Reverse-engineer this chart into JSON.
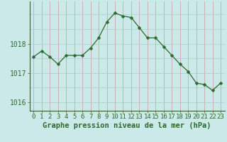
{
  "x": [
    0,
    1,
    2,
    3,
    4,
    5,
    6,
    7,
    8,
    9,
    10,
    11,
    12,
    13,
    14,
    15,
    16,
    17,
    18,
    19,
    20,
    21,
    22,
    23
  ],
  "y": [
    1017.55,
    1017.75,
    1017.55,
    1017.3,
    1017.6,
    1017.6,
    1017.6,
    1017.85,
    1018.2,
    1018.75,
    1019.05,
    1018.95,
    1018.9,
    1018.55,
    1018.2,
    1018.2,
    1017.9,
    1017.6,
    1017.3,
    1017.05,
    1016.65,
    1016.6,
    1016.4,
    1016.65
  ],
  "line_color": "#2d6a2d",
  "marker": "D",
  "marker_size": 2.5,
  "background_color": "#cce9e9",
  "grid_color_v": "#cc9999",
  "grid_color_h": "#aacccc",
  "xlabel": "Graphe pression niveau de la mer (hPa)",
  "yticks": [
    1016,
    1017,
    1018
  ],
  "ylim": [
    1015.7,
    1019.45
  ],
  "xlim": [
    -0.5,
    23.5
  ],
  "xlabel_fontsize": 7.5,
  "ytick_fontsize": 7,
  "xtick_fontsize": 6.5
}
